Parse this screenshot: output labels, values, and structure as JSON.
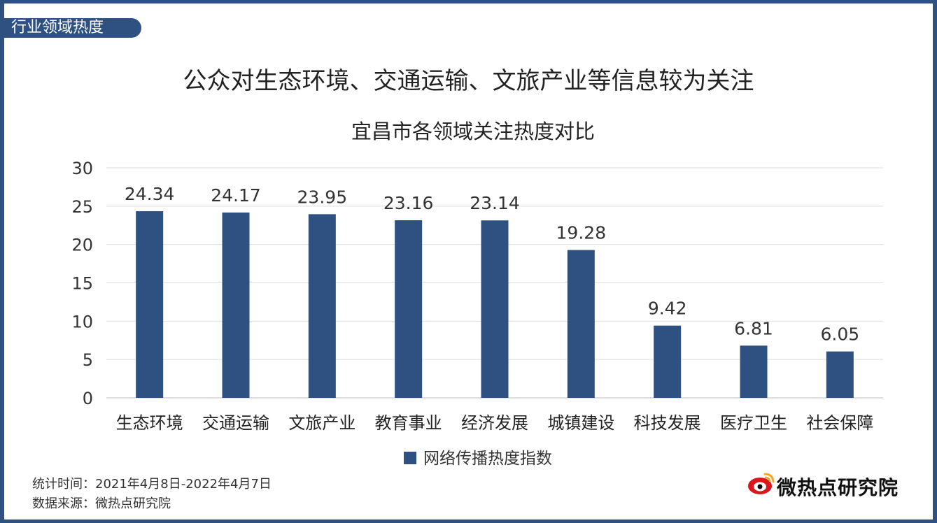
{
  "section_tag": "行业领域热度",
  "headline": "公众对生态环境、交通运输、文旅产业等信息较为关注",
  "chart_data": {
    "type": "bar",
    "title": "宜昌市各领域关注热度对比",
    "categories": [
      "生态环境",
      "交通运输",
      "文旅产业",
      "教育事业",
      "经济发展",
      "城镇建设",
      "科技发展",
      "医疗卫生",
      "社会保障"
    ],
    "series": [
      {
        "name": "网络传播热度指数",
        "values": [
          24.34,
          24.17,
          23.95,
          23.16,
          23.14,
          19.28,
          9.42,
          6.81,
          6.05
        ],
        "value_labels": [
          "24.34",
          "24.17",
          "23.95",
          "23.16",
          "23.14",
          "19.28",
          "9.42",
          "6.81",
          "6.05"
        ],
        "color": "#2e5181"
      }
    ],
    "ylim": [
      0,
      30
    ],
    "yticks": [
      0,
      5,
      10,
      15,
      20,
      25,
      30
    ],
    "grid": true,
    "legend_position": "bottom"
  },
  "footer": {
    "period": "统计时间：2021年4月8日-2022年4月7日",
    "source": "数据来源：微热点研究院"
  },
  "brand": {
    "name": "微热点研究院"
  },
  "colors": {
    "accent": "#2e5181",
    "brand_red": "#d9171c"
  }
}
